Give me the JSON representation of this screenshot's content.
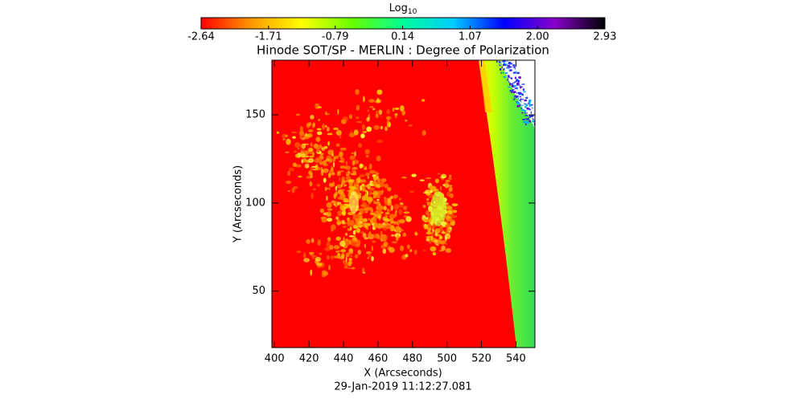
{
  "chart_data": {
    "type": "image",
    "title": "Hinode SOT/SP - MERLIN : Degree of Polarization",
    "xlabel": "X (Arcseconds)",
    "ylabel": "Y (Arcseconds)",
    "date": "29-Jan-2019 11:12:27.081",
    "xlim": [
      398.5,
      551
    ],
    "xticks": [
      400,
      420,
      440,
      460,
      480,
      500,
      520,
      540
    ],
    "ylim": [
      18,
      181
    ],
    "yticks": [
      50,
      100,
      150
    ],
    "colorbar": {
      "label": "Log",
      "label_sub": "10",
      "range": [
        -2.64,
        2.93
      ],
      "ticks": [
        -2.64,
        -1.71,
        -0.79,
        0.14,
        1.07,
        {
          "value": 2,
          "label": "2.00"
        },
        2.93
      ],
      "colors": [
        "#ff0000",
        "#ff9900",
        "#ffff00",
        "#66ff00",
        "#00ff99",
        "#00ccff",
        "#0000ff",
        "#8800cc",
        "#000000"
      ]
    }
  }
}
